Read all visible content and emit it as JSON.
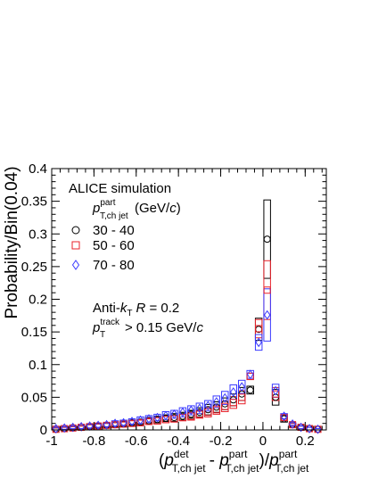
{
  "chart_data": {
    "type": "scatter",
    "title": "ALICE simulation",
    "xlabel_parts": {
      "open": "(",
      "p": "p",
      "sup_det": "det",
      "sub_det": "T,ch jet",
      "minus": "- ",
      "sup_part": "part",
      "sub_part": "T,ch jet",
      "close_div": ")/",
      "sup_part2": "part",
      "sub_part2": "T,ch jet"
    },
    "ylabel": "Probability/Bin(0.04)",
    "xlim": [
      -1.0,
      0.3
    ],
    "ylim": [
      0.0,
      0.4
    ],
    "x_ticks": [
      -1,
      -0.8,
      -0.6,
      -0.4,
      -0.2,
      0,
      0.2
    ],
    "x_tick_labels": [
      "-1",
      "-0.8",
      "-0.6",
      "-0.4",
      "-0.2",
      "0",
      "0.2"
    ],
    "y_ticks": [
      0,
      0.05,
      0.1,
      0.15,
      0.2,
      0.25,
      0.3,
      0.35,
      0.4
    ],
    "y_tick_labels": [
      "0",
      "0.05",
      "0.1",
      "0.15",
      "0.2",
      "0.25",
      "0.3",
      "0.35",
      "0.4"
    ],
    "legend": {
      "header_p": "p",
      "header_sup": "part",
      "header_sub": "T,ch jet",
      "header_unit_open": "(GeV/",
      "header_unit_c": "c",
      "header_unit_close": ")",
      "placement": "top-left"
    },
    "annotations": {
      "antikt_prefix": "Anti-",
      "antikt_k": "k",
      "antikt_sub": "T",
      "antikt_R": "R",
      "antikt_value": " = 0.2",
      "track_p": "p",
      "track_sup": "track",
      "track_sub": "T",
      "track_value": "> 0.15 GeV/",
      "track_c": "c"
    },
    "bin_width": 0.04,
    "series": [
      {
        "name": "30 - 40",
        "marker": "circle",
        "color": "#000000",
        "x": [
          -0.98,
          -0.94,
          -0.9,
          -0.86,
          -0.82,
          -0.78,
          -0.74,
          -0.7,
          -0.66,
          -0.62,
          -0.58,
          -0.54,
          -0.5,
          -0.46,
          -0.42,
          -0.38,
          -0.34,
          -0.3,
          -0.26,
          -0.22,
          -0.18,
          -0.14,
          -0.1,
          -0.06,
          -0.02,
          0.02,
          0.06,
          0.1,
          0.14,
          0.18,
          0.22,
          0.26
        ],
        "y": [
          0.001,
          0.002,
          0.003,
          0.004,
          0.005,
          0.006,
          0.007,
          0.008,
          0.009,
          0.011,
          0.012,
          0.014,
          0.016,
          0.018,
          0.019,
          0.021,
          0.024,
          0.027,
          0.031,
          0.035,
          0.04,
          0.046,
          0.055,
          0.061,
          0.154,
          0.292,
          0.05,
          0.017,
          0.008,
          0.004,
          0.002,
          0.001
        ],
        "sys": [
          0.002,
          0.002,
          0.002,
          0.002,
          0.003,
          0.003,
          0.003,
          0.003,
          0.004,
          0.004,
          0.004,
          0.005,
          0.005,
          0.005,
          0.006,
          0.006,
          0.006,
          0.007,
          0.008,
          0.008,
          0.009,
          0.009,
          0.01,
          0.006,
          0.017,
          0.06,
          0.012,
          0.005,
          0.002,
          0.002,
          0.002,
          0.001
        ]
      },
      {
        "name": "50 - 60",
        "marker": "square",
        "color": "#e8222b",
        "x": [
          -0.98,
          -0.94,
          -0.9,
          -0.86,
          -0.82,
          -0.78,
          -0.74,
          -0.7,
          -0.66,
          -0.62,
          -0.58,
          -0.54,
          -0.5,
          -0.46,
          -0.42,
          -0.38,
          -0.34,
          -0.3,
          -0.26,
          -0.22,
          -0.18,
          -0.14,
          -0.1,
          -0.06,
          -0.02,
          0.02,
          0.06,
          0.1,
          0.14,
          0.18,
          0.22,
          0.26
        ],
        "y": [
          0.001,
          0.002,
          0.003,
          0.004,
          0.005,
          0.006,
          0.007,
          0.008,
          0.009,
          0.01,
          0.011,
          0.013,
          0.014,
          0.016,
          0.017,
          0.019,
          0.021,
          0.024,
          0.027,
          0.031,
          0.036,
          0.042,
          0.05,
          0.082,
          0.155,
          0.214,
          0.055,
          0.019,
          0.008,
          0.004,
          0.002,
          0.001
        ],
        "sys": [
          0.002,
          0.002,
          0.002,
          0.002,
          0.003,
          0.003,
          0.003,
          0.003,
          0.003,
          0.004,
          0.004,
          0.004,
          0.005,
          0.005,
          0.005,
          0.005,
          0.006,
          0.006,
          0.007,
          0.007,
          0.008,
          0.009,
          0.01,
          0.005,
          0.014,
          0.045,
          0.01,
          0.004,
          0.002,
          0.002,
          0.002,
          0.001
        ]
      },
      {
        "name": "70 - 80",
        "marker": "diamond",
        "color": "#3a3aff",
        "x": [
          -0.98,
          -0.94,
          -0.9,
          -0.86,
          -0.82,
          -0.78,
          -0.74,
          -0.7,
          -0.66,
          -0.62,
          -0.58,
          -0.54,
          -0.5,
          -0.46,
          -0.42,
          -0.38,
          -0.34,
          -0.3,
          -0.26,
          -0.22,
          -0.18,
          -0.14,
          -0.1,
          -0.06,
          -0.02,
          0.02,
          0.06,
          0.1,
          0.14,
          0.18,
          0.22,
          0.26
        ],
        "y": [
          0.002,
          0.003,
          0.004,
          0.005,
          0.006,
          0.007,
          0.008,
          0.01,
          0.011,
          0.013,
          0.015,
          0.017,
          0.019,
          0.022,
          0.024,
          0.027,
          0.03,
          0.033,
          0.037,
          0.043,
          0.049,
          0.058,
          0.066,
          0.085,
          0.134,
          0.176,
          0.06,
          0.021,
          0.009,
          0.004,
          0.002,
          0.001
        ],
        "sys": [
          0.002,
          0.002,
          0.002,
          0.003,
          0.003,
          0.003,
          0.003,
          0.004,
          0.004,
          0.004,
          0.005,
          0.005,
          0.005,
          0.006,
          0.006,
          0.007,
          0.007,
          0.008,
          0.008,
          0.009,
          0.01,
          0.011,
          0.01,
          0.006,
          0.012,
          0.04,
          0.01,
          0.004,
          0.002,
          0.002,
          0.002,
          0.001
        ]
      }
    ]
  }
}
